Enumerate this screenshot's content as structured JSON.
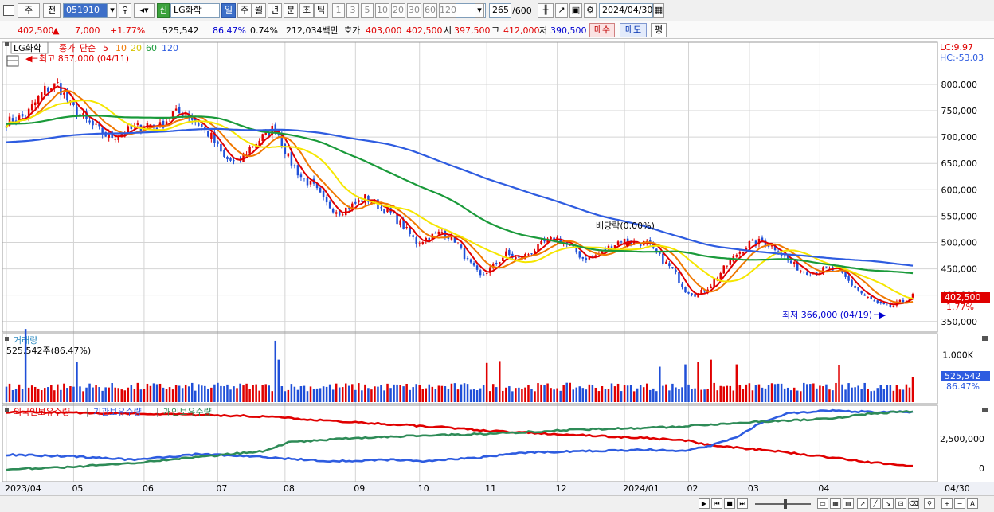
{
  "toolbar": {
    "period_label": "주",
    "prev_label": "전",
    "code": "051910",
    "credit_badge": "신",
    "stock_name": "LG화학",
    "periods": [
      "일",
      "주",
      "월",
      "년",
      "분",
      "초",
      "틱"
    ],
    "selected_period": "일",
    "intervals": [
      "1",
      "3",
      "5",
      "10",
      "20",
      "30",
      "60",
      "120"
    ],
    "count": "265",
    "count_total": "/600",
    "date": "2024/04/30"
  },
  "quote": {
    "price": "402,500",
    "change": "7,000",
    "change_pct": "+1.77%",
    "volume": "525,542",
    "volume_ratio": "86.47%",
    "turnover_pct": "0.74%",
    "amount": "212,034백만",
    "ask_label": "호가",
    "ask": "403,000",
    "bid": "402,500",
    "open_label": "시",
    "open": "397,500",
    "high_label": "고",
    "high": "412,000",
    "low_label": "저",
    "low": "390,500",
    "buy_label": "매수",
    "sell_label": "매도",
    "eval_label": "평"
  },
  "colors": {
    "up": "#e00000",
    "down": "#1f4fd8",
    "ma5": "#e00000",
    "ma10": "#f07800",
    "ma20": "#f5e600",
    "ma60": "#1a9a3a",
    "ma120": "#2e5ce0",
    "grid": "#d4d4d4",
    "foreign": "#e00000",
    "institution": "#2e5ce0",
    "individual": "#2e8b57"
  },
  "chart_data": [
    {
      "type": "candlestick",
      "legend_title": "LG화학",
      "legend_price_label": "종가",
      "legend_ma_label": "단순",
      "ma_periods": [
        "5",
        "10",
        "20",
        "60",
        "120"
      ],
      "high_annotation": "최고 857,000 (04/11)",
      "low_annotation": "최저 366,000 (04/19)",
      "dividend_annotation": "배당락(0.00%)",
      "lc": "LC:9.97",
      "hc": "HC:-53.03",
      "last_price_tag": "402,500",
      "last_change_tag": "1.77%",
      "ylim": [
        330000,
        880000
      ],
      "y_ticks": [
        350000,
        400000,
        450000,
        500000,
        550000,
        600000,
        650000,
        700000,
        750000,
        800000
      ],
      "y_tick_labels": [
        "350,000",
        "400,000",
        "450,000",
        "500,000",
        "550,000",
        "600,000",
        "650,000",
        "700,000",
        "750,000",
        "800,000"
      ],
      "x_labels": [
        "2023/04",
        "05",
        "06",
        "07",
        "08",
        "09",
        "10",
        "11",
        "12",
        "2024/01",
        "02",
        "03",
        "04"
      ],
      "last_date_label": "04/30",
      "close_anchors": [
        [
          0,
          728000
        ],
        [
          6,
          740000
        ],
        [
          12,
          790000
        ],
        [
          16,
          800000
        ],
        [
          20,
          760000
        ],
        [
          26,
          725000
        ],
        [
          32,
          700000
        ],
        [
          38,
          712000
        ],
        [
          44,
          725000
        ],
        [
          48,
          720000
        ],
        [
          52,
          745000
        ],
        [
          56,
          745000
        ],
        [
          60,
          725000
        ],
        [
          64,
          700000
        ],
        [
          68,
          660000
        ],
        [
          72,
          650000
        ],
        [
          76,
          680000
        ],
        [
          80,
          700000
        ],
        [
          84,
          720000
        ],
        [
          88,
          660000
        ],
        [
          92,
          625000
        ],
        [
          96,
          605000
        ],
        [
          100,
          572000
        ],
        [
          104,
          558000
        ],
        [
          108,
          570000
        ],
        [
          112,
          585000
        ],
        [
          116,
          570000
        ],
        [
          120,
          555000
        ],
        [
          124,
          530000
        ],
        [
          128,
          500000
        ],
        [
          132,
          510000
        ],
        [
          136,
          520000
        ],
        [
          140,
          505000
        ],
        [
          144,
          465000
        ],
        [
          148,
          435000
        ],
        [
          152,
          455000
        ],
        [
          156,
          478000
        ],
        [
          160,
          468000
        ],
        [
          164,
          482000
        ],
        [
          168,
          500000
        ],
        [
          172,
          508000
        ],
        [
          176,
          492000
        ],
        [
          180,
          470000
        ],
        [
          184,
          475000
        ],
        [
          188,
          490000
        ],
        [
          192,
          505000
        ],
        [
          196,
          500000
        ],
        [
          200,
          498000
        ],
        [
          204,
          472000
        ],
        [
          208,
          448000
        ],
        [
          212,
          410000
        ],
        [
          216,
          400000
        ],
        [
          220,
          420000
        ],
        [
          224,
          450000
        ],
        [
          228,
          478000
        ],
        [
          232,
          498000
        ],
        [
          236,
          502000
        ],
        [
          240,
          490000
        ],
        [
          244,
          465000
        ],
        [
          248,
          448000
        ],
        [
          252,
          442000
        ],
        [
          256,
          450000
        ],
        [
          260,
          445000
        ],
        [
          264,
          420000
        ],
        [
          268,
          398000
        ],
        [
          272,
          383000
        ],
        [
          276,
          378000
        ],
        [
          280,
          388000
        ],
        [
          283,
          402500
        ]
      ]
    },
    {
      "type": "bar",
      "title": "거래량",
      "last_volume_label": "525,542주(86.47%)",
      "ylim": [
        0,
        1400000
      ],
      "y_ticks": [
        1000000
      ],
      "y_tick_labels": [
        "1,000K"
      ],
      "last_volume_tag": "525,542",
      "last_ratio_tag": "86.47%",
      "spike_index": [
        6,
        22,
        84,
        85,
        150,
        154,
        204,
        212,
        216,
        220,
        228,
        260
      ],
      "spike_values": [
        1550000,
        850000,
        1300000,
        900000,
        830000,
        870000,
        750000,
        800000,
        850000,
        900000,
        800000,
        780000
      ]
    },
    {
      "type": "line",
      "series": [
        {
          "name": "외국인보유수량",
          "anchors": [
            [
              0,
              94
            ],
            [
              40,
              92
            ],
            [
              80,
              88
            ],
            [
              100,
              82
            ],
            [
              140,
              72
            ],
            [
              150,
              68
            ],
            [
              180,
              62
            ],
            [
              200,
              58
            ],
            [
              212,
              55
            ],
            [
              220,
              48
            ],
            [
              240,
              40
            ],
            [
              260,
              30
            ],
            [
              270,
              24
            ],
            [
              283,
              20
            ]
          ]
        },
        {
          "name": "기관보유수량",
          "anchors": [
            [
              0,
              35
            ],
            [
              20,
              33
            ],
            [
              40,
              28
            ],
            [
              60,
              36
            ],
            [
              80,
              32
            ],
            [
              100,
              26
            ],
            [
              120,
              28
            ],
            [
              130,
              26
            ],
            [
              150,
              32
            ],
            [
              160,
              38
            ],
            [
              180,
              40
            ],
            [
              200,
              42
            ],
            [
              212,
              40
            ],
            [
              220,
              48
            ],
            [
              228,
              60
            ],
            [
              236,
              80
            ],
            [
              244,
              92
            ],
            [
              256,
              96
            ],
            [
              270,
              94
            ],
            [
              283,
              94
            ]
          ]
        },
        {
          "name": "개인보유수량",
          "anchors": [
            [
              0,
              15
            ],
            [
              20,
              18
            ],
            [
              40,
              24
            ],
            [
              60,
              32
            ],
            [
              80,
              40
            ],
            [
              84,
              45
            ],
            [
              88,
              52
            ],
            [
              100,
              56
            ],
            [
              120,
              60
            ],
            [
              150,
              64
            ],
            [
              180,
              70
            ],
            [
              200,
              72
            ],
            [
              210,
              74
            ],
            [
              220,
              77
            ],
            [
              232,
              80
            ],
            [
              248,
              83
            ],
            [
              260,
              86
            ],
            [
              270,
              92
            ],
            [
              283,
              95
            ]
          ]
        }
      ],
      "y_ticks_labels": [
        "2,500,000",
        "0"
      ]
    }
  ],
  "footer": {
    "buttons": [
      "▶",
      "⏮",
      "■",
      "⏭",
      "+",
      "−",
      "A"
    ]
  }
}
